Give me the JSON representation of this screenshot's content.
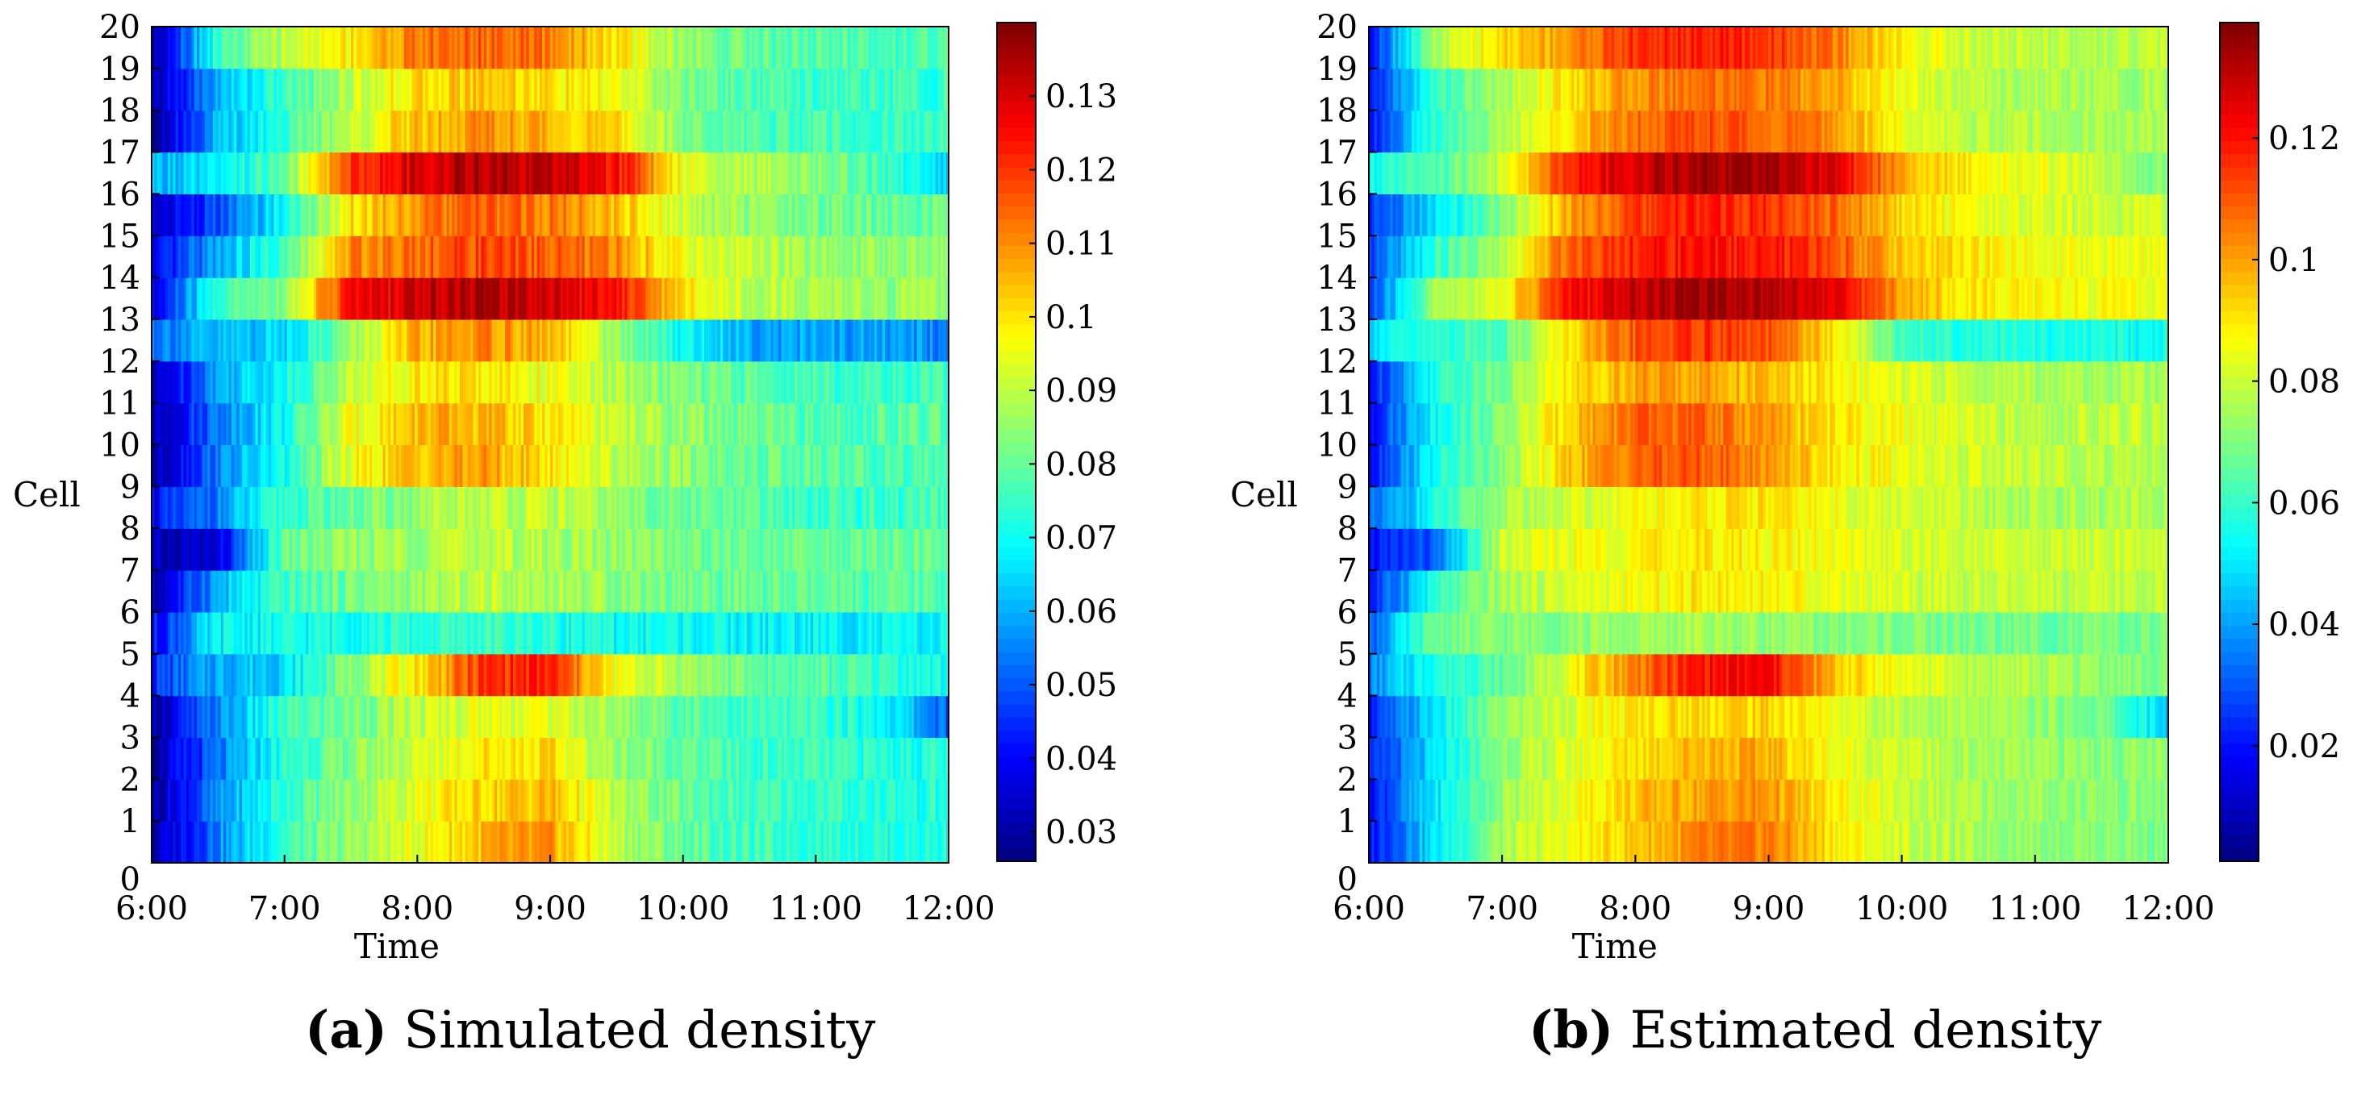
{
  "chart_data": [
    {
      "type": "heatmap",
      "panel": "(a)",
      "caption_letter": "(a)",
      "caption_text": "Simulated density",
      "title": "",
      "xlabel": "Time",
      "ylabel": "Cell",
      "x_ticks": [
        "6:00",
        "7:00",
        "8:00",
        "9:00",
        "10:00",
        "11:00",
        "12:00"
      ],
      "x_range_hours": [
        6.0,
        12.0
      ],
      "y_ticks": [
        "0",
        "1",
        "2",
        "3",
        "4",
        "5",
        "6",
        "7",
        "8",
        "9",
        "10",
        "11",
        "12",
        "13",
        "14",
        "15",
        "16",
        "17",
        "18",
        "19",
        "20"
      ],
      "cells": 20,
      "colorbar_ticks": [
        "0.03",
        "0.04",
        "0.05",
        "0.06",
        "0.07",
        "0.08",
        "0.09",
        "0.1",
        "0.11",
        "0.12",
        "0.13"
      ],
      "colorbar_tick_values": [
        0.03,
        0.04,
        0.05,
        0.06,
        0.07,
        0.08,
        0.09,
        0.1,
        0.11,
        0.12,
        0.13
      ],
      "colorbar_range": [
        0.026,
        0.14
      ],
      "colormap": "jet",
      "time_knots_hours": [
        6.0,
        6.5,
        7.0,
        7.5,
        8.0,
        8.5,
        9.0,
        9.5,
        10.0,
        10.5,
        11.0,
        11.5,
        12.0
      ],
      "density_by_cell": [
        [
          0.03,
          0.055,
          0.075,
          0.085,
          0.095,
          0.105,
          0.108,
          0.09,
          0.08,
          0.075,
          0.075,
          0.073,
          0.072
        ],
        [
          0.03,
          0.055,
          0.075,
          0.085,
          0.095,
          0.102,
          0.105,
          0.088,
          0.08,
          0.075,
          0.075,
          0.073,
          0.072
        ],
        [
          0.03,
          0.052,
          0.073,
          0.083,
          0.092,
          0.1,
          0.1,
          0.085,
          0.08,
          0.075,
          0.075,
          0.073,
          0.072
        ],
        [
          0.03,
          0.055,
          0.075,
          0.082,
          0.09,
          0.095,
          0.095,
          0.085,
          0.08,
          0.075,
          0.075,
          0.07,
          0.05
        ],
        [
          0.045,
          0.06,
          0.065,
          0.085,
          0.1,
          0.12,
          0.122,
          0.095,
          0.088,
          0.08,
          0.078,
          0.075,
          0.07
        ],
        [
          0.04,
          0.068,
          0.07,
          0.072,
          0.073,
          0.075,
          0.073,
          0.07,
          0.07,
          0.068,
          0.068,
          0.068,
          0.068
        ],
        [
          0.03,
          0.06,
          0.075,
          0.082,
          0.085,
          0.09,
          0.088,
          0.085,
          0.082,
          0.08,
          0.078,
          0.078,
          0.078
        ],
        [
          0.03,
          0.035,
          0.08,
          0.085,
          0.088,
          0.09,
          0.088,
          0.085,
          0.082,
          0.08,
          0.08,
          0.08,
          0.08
        ],
        [
          0.04,
          0.055,
          0.075,
          0.08,
          0.085,
          0.09,
          0.09,
          0.085,
          0.08,
          0.078,
          0.075,
          0.075,
          0.075
        ],
        [
          0.03,
          0.055,
          0.07,
          0.095,
          0.105,
          0.108,
          0.1,
          0.09,
          0.085,
          0.08,
          0.078,
          0.078,
          0.078
        ],
        [
          0.03,
          0.055,
          0.07,
          0.095,
          0.105,
          0.105,
          0.1,
          0.09,
          0.085,
          0.08,
          0.078,
          0.078,
          0.078
        ],
        [
          0.03,
          0.06,
          0.07,
          0.09,
          0.1,
          0.1,
          0.095,
          0.088,
          0.082,
          0.078,
          0.076,
          0.075,
          0.075
        ],
        [
          0.055,
          0.06,
          0.065,
          0.085,
          0.105,
          0.11,
          0.105,
          0.085,
          0.07,
          0.06,
          0.058,
          0.058,
          0.055
        ],
        [
          0.035,
          0.075,
          0.085,
          0.125,
          0.132,
          0.135,
          0.132,
          0.125,
          0.1,
          0.09,
          0.088,
          0.085,
          0.085
        ],
        [
          0.035,
          0.06,
          0.075,
          0.11,
          0.115,
          0.118,
          0.115,
          0.11,
          0.095,
          0.09,
          0.085,
          0.085,
          0.085
        ],
        [
          0.035,
          0.048,
          0.07,
          0.1,
          0.11,
          0.115,
          0.112,
          0.105,
          0.09,
          0.085,
          0.082,
          0.08,
          0.08
        ],
        [
          0.06,
          0.065,
          0.08,
          0.12,
          0.13,
          0.135,
          0.132,
          0.125,
          0.095,
          0.088,
          0.085,
          0.075,
          0.065
        ],
        [
          0.03,
          0.06,
          0.075,
          0.09,
          0.105,
          0.11,
          0.105,
          0.1,
          0.082,
          0.078,
          0.076,
          0.075,
          0.075
        ],
        [
          0.03,
          0.06,
          0.075,
          0.09,
          0.1,
          0.105,
          0.1,
          0.095,
          0.082,
          0.078,
          0.076,
          0.075,
          0.075
        ],
        [
          0.03,
          0.075,
          0.09,
          0.1,
          0.112,
          0.115,
          0.112,
          0.1,
          0.085,
          0.08,
          0.078,
          0.078,
          0.078
        ]
      ]
    },
    {
      "type": "heatmap",
      "panel": "(b)",
      "caption_letter": "(b)",
      "caption_text": "Estimated density",
      "title": "",
      "xlabel": "Time",
      "ylabel": "Cell",
      "x_ticks": [
        "6:00",
        "7:00",
        "8:00",
        "9:00",
        "10:00",
        "11:00",
        "12:00"
      ],
      "x_range_hours": [
        6.0,
        12.0
      ],
      "y_ticks": [
        "0",
        "1",
        "2",
        "3",
        "4",
        "5",
        "6",
        "7",
        "8",
        "9",
        "10",
        "11",
        "12",
        "13",
        "14",
        "15",
        "16",
        "17",
        "18",
        "19",
        "20"
      ],
      "cells": 20,
      "colorbar_ticks": [
        "0.02",
        "0.04",
        "0.06",
        "0.08",
        "0.1",
        "0.12"
      ],
      "colorbar_tick_values": [
        0.02,
        0.04,
        0.06,
        0.08,
        0.1,
        0.12
      ],
      "colorbar_range": [
        0.001,
        0.139
      ],
      "colormap": "jet",
      "time_knots_hours": [
        6.0,
        6.5,
        7.0,
        7.5,
        8.0,
        8.5,
        9.0,
        9.5,
        10.0,
        10.5,
        11.0,
        11.5,
        12.0
      ],
      "density_by_cell": [
        [
          0.02,
          0.05,
          0.075,
          0.085,
          0.095,
          0.103,
          0.105,
          0.09,
          0.08,
          0.075,
          0.073,
          0.072,
          0.07
        ],
        [
          0.02,
          0.05,
          0.073,
          0.085,
          0.095,
          0.1,
          0.102,
          0.088,
          0.08,
          0.075,
          0.073,
          0.072,
          0.07
        ],
        [
          0.02,
          0.048,
          0.072,
          0.082,
          0.092,
          0.098,
          0.098,
          0.085,
          0.08,
          0.075,
          0.073,
          0.072,
          0.07
        ],
        [
          0.02,
          0.05,
          0.073,
          0.082,
          0.09,
          0.093,
          0.093,
          0.085,
          0.078,
          0.075,
          0.073,
          0.068,
          0.045
        ],
        [
          0.035,
          0.058,
          0.065,
          0.085,
          0.105,
          0.12,
          0.122,
          0.095,
          0.085,
          0.078,
          0.076,
          0.073,
          0.068
        ],
        [
          0.03,
          0.068,
          0.07,
          0.072,
          0.073,
          0.075,
          0.073,
          0.07,
          0.07,
          0.068,
          0.068,
          0.068,
          0.068
        ],
        [
          0.02,
          0.058,
          0.075,
          0.082,
          0.085,
          0.09,
          0.088,
          0.085,
          0.082,
          0.078,
          0.078,
          0.078,
          0.078
        ],
        [
          0.02,
          0.03,
          0.08,
          0.085,
          0.088,
          0.09,
          0.088,
          0.085,
          0.082,
          0.08,
          0.08,
          0.08,
          0.08
        ],
        [
          0.03,
          0.055,
          0.075,
          0.08,
          0.085,
          0.09,
          0.09,
          0.085,
          0.08,
          0.078,
          0.075,
          0.075,
          0.075
        ],
        [
          0.02,
          0.055,
          0.07,
          0.095,
          0.108,
          0.11,
          0.102,
          0.09,
          0.085,
          0.08,
          0.078,
          0.078,
          0.078
        ],
        [
          0.02,
          0.055,
          0.07,
          0.095,
          0.108,
          0.108,
          0.1,
          0.09,
          0.085,
          0.08,
          0.078,
          0.078,
          0.078
        ],
        [
          0.02,
          0.058,
          0.07,
          0.09,
          0.1,
          0.1,
          0.095,
          0.088,
          0.082,
          0.078,
          0.076,
          0.075,
          0.075
        ],
        [
          0.05,
          0.058,
          0.065,
          0.09,
          0.11,
          0.115,
          0.11,
          0.09,
          0.062,
          0.058,
          0.056,
          0.056,
          0.055
        ],
        [
          0.025,
          0.075,
          0.085,
          0.12,
          0.13,
          0.135,
          0.133,
          0.125,
          0.1,
          0.09,
          0.088,
          0.085,
          0.085
        ],
        [
          0.025,
          0.06,
          0.075,
          0.11,
          0.118,
          0.12,
          0.118,
          0.112,
          0.095,
          0.09,
          0.085,
          0.085,
          0.085
        ],
        [
          0.025,
          0.048,
          0.07,
          0.1,
          0.112,
          0.118,
          0.115,
          0.108,
          0.092,
          0.085,
          0.082,
          0.08,
          0.08
        ],
        [
          0.055,
          0.062,
          0.08,
          0.118,
          0.128,
          0.135,
          0.133,
          0.125,
          0.1,
          0.088,
          0.085,
          0.078,
          0.068
        ],
        [
          0.02,
          0.06,
          0.075,
          0.092,
          0.108,
          0.112,
          0.108,
          0.102,
          0.085,
          0.078,
          0.076,
          0.075,
          0.075
        ],
        [
          0.02,
          0.06,
          0.075,
          0.092,
          0.102,
          0.108,
          0.105,
          0.098,
          0.085,
          0.078,
          0.076,
          0.075,
          0.075
        ],
        [
          0.02,
          0.075,
          0.092,
          0.102,
          0.115,
          0.118,
          0.115,
          0.105,
          0.088,
          0.08,
          0.078,
          0.078,
          0.078
        ]
      ]
    }
  ]
}
